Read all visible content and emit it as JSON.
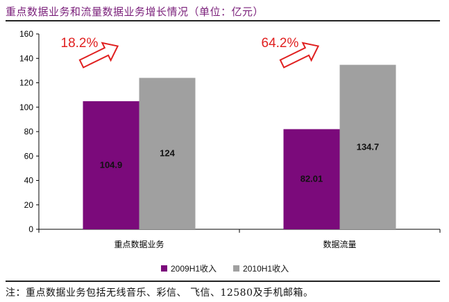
{
  "title": "重点数据业务和流量数据业务增长情况（单位：亿元）",
  "footnote": "注：重点数据业务包括无线音乐、彩信、 飞信、12580及手机邮箱。",
  "chart_data": {
    "type": "bar",
    "title": "重点数据业务和流量数据业务增长情况（单位：亿元）",
    "categories": [
      "重点数据业务",
      "数据流量"
    ],
    "series": [
      {
        "name": "2009H1收入",
        "values": [
          104.9,
          82.01
        ],
        "labels": [
          "104.9",
          "82.01"
        ],
        "color": "#7b0a7b"
      },
      {
        "name": "2010H1收入",
        "values": [
          124,
          134.7
        ],
        "labels": [
          "124",
          "134.7"
        ],
        "color": "#a0a0a0"
      }
    ],
    "growth_annotations": [
      "18.2%",
      "64.2%"
    ],
    "ylim": [
      0,
      160
    ],
    "yticks": [
      "0",
      "20",
      "40",
      "60",
      "80",
      "100",
      "120",
      "140",
      "160"
    ],
    "xlabel": "",
    "ylabel": "",
    "legend": "bottom"
  }
}
